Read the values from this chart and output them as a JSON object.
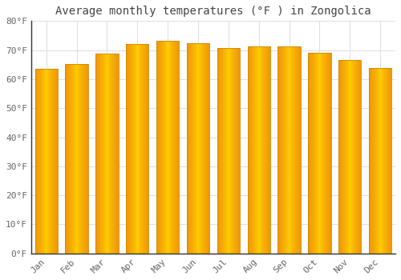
{
  "title": "Average monthly temperatures (°F ) in Zongolica",
  "months": [
    "Jan",
    "Feb",
    "Mar",
    "Apr",
    "May",
    "Jun",
    "Jul",
    "Aug",
    "Sep",
    "Oct",
    "Nov",
    "Dec"
  ],
  "values": [
    63.5,
    65.3,
    68.9,
    72.1,
    73.2,
    72.3,
    70.7,
    71.3,
    71.2,
    69.1,
    66.5,
    63.9
  ],
  "bar_color_center": "#FFD000",
  "bar_color_edge": "#F0960A",
  "bar_outline_color": "#CC8800",
  "background_color": "#FFFFFF",
  "plot_bg_color": "#FFFFFF",
  "ylim": [
    0,
    80
  ],
  "yticks": [
    0,
    10,
    20,
    30,
    40,
    50,
    60,
    70,
    80
  ],
  "ytick_labels": [
    "0°F",
    "10°F",
    "20°F",
    "30°F",
    "40°F",
    "50°F",
    "60°F",
    "70°F",
    "80°F"
  ],
  "title_fontsize": 10,
  "tick_fontsize": 8,
  "grid_color": "#E0E0E0",
  "spine_color": "#333333",
  "tick_color": "#666666"
}
